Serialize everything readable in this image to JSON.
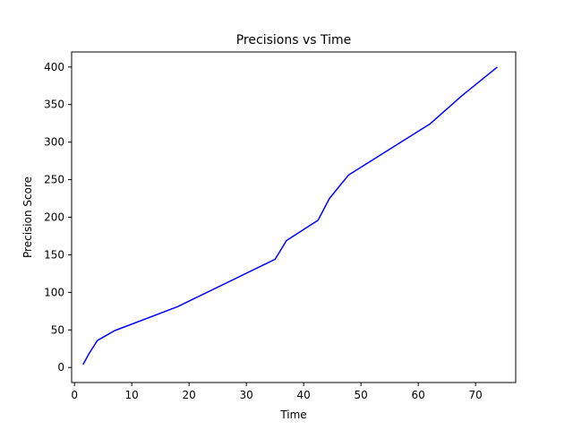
{
  "chart_data": {
    "type": "line",
    "title": "Precisions vs Time",
    "xlabel": "Time",
    "ylabel": "Precision Score",
    "xlim": [
      -0.5,
      77.0
    ],
    "ylim": [
      -20,
      420
    ],
    "xticks": [
      0,
      10,
      20,
      30,
      40,
      50,
      60,
      70
    ],
    "yticks": [
      0,
      50,
      100,
      150,
      200,
      250,
      300,
      350,
      400
    ],
    "grid": false,
    "legend": "none",
    "series": [
      {
        "color": "#0000ff",
        "points": [
          [
            1.5,
            4
          ],
          [
            2.5,
            18
          ],
          [
            4.0,
            36
          ],
          [
            7.0,
            49
          ],
          [
            18.0,
            81
          ],
          [
            35.0,
            144
          ],
          [
            37.0,
            169
          ],
          [
            42.5,
            196
          ],
          [
            44.5,
            225
          ],
          [
            47.8,
            256
          ],
          [
            62.0,
            324
          ],
          [
            67.5,
            361
          ],
          [
            73.8,
            400
          ]
        ]
      }
    ]
  }
}
